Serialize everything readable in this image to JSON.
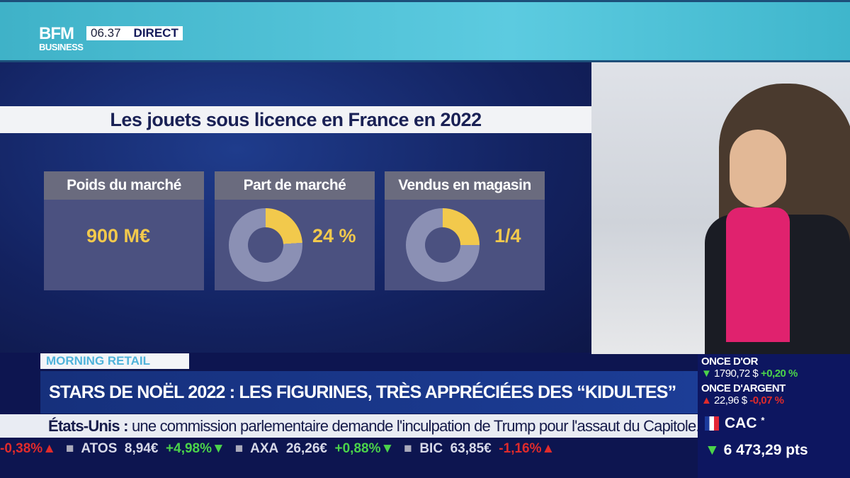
{
  "header": {
    "logo_top": "BFM",
    "logo_bottom": "BUSINESS",
    "time": "06.37",
    "live": "DIRECT"
  },
  "infographic": {
    "title": "Les jouets sous licence en France en 2022",
    "cards": [
      {
        "label": "Poids du marché",
        "value": "900 M€"
      },
      {
        "label": "Part de marché",
        "value": "24 %",
        "share": 0.24
      },
      {
        "label": "Vendus en magasin",
        "value": "1/4",
        "share": 0.25
      }
    ]
  },
  "colors": {
    "accent": "#f2c94c",
    "donut_rest": "#8b90b4"
  },
  "show": "MORNING RETAIL",
  "headline": "STARS DE NOËL 2022 : LES FIGURINES, TRÈS APPRÉCIÉES DES “KIDULTES”",
  "crawl": {
    "topic": "États-Unis :",
    "text": " une commission parlementaire demande l'inculpation de Trump pour l'assaut du Capitole."
  },
  "ticker": [
    {
      "name": "",
      "price": "",
      "change": "-0,38%",
      "dir": "dn"
    },
    {
      "name": "ATOS",
      "price": "8,94€",
      "change": "+4,98%",
      "dir": "up"
    },
    {
      "name": "AXA",
      "price": "26,26€",
      "change": "+0,88%",
      "dir": "up"
    },
    {
      "name": "BIC",
      "price": "63,85€",
      "change": "-1,16%",
      "dir": "dn"
    }
  ],
  "markets": [
    {
      "name": "ONCE D'OR",
      "price": "1790,72 $",
      "change": "+0,20 %",
      "dir": "up"
    },
    {
      "name": "ONCE D'ARGENT",
      "price": "22,96 $",
      "change": "-0,07 %",
      "dir": "dn"
    }
  ],
  "index": {
    "name": "CAC",
    "mark": "*",
    "value": "6 473,29 pts"
  }
}
